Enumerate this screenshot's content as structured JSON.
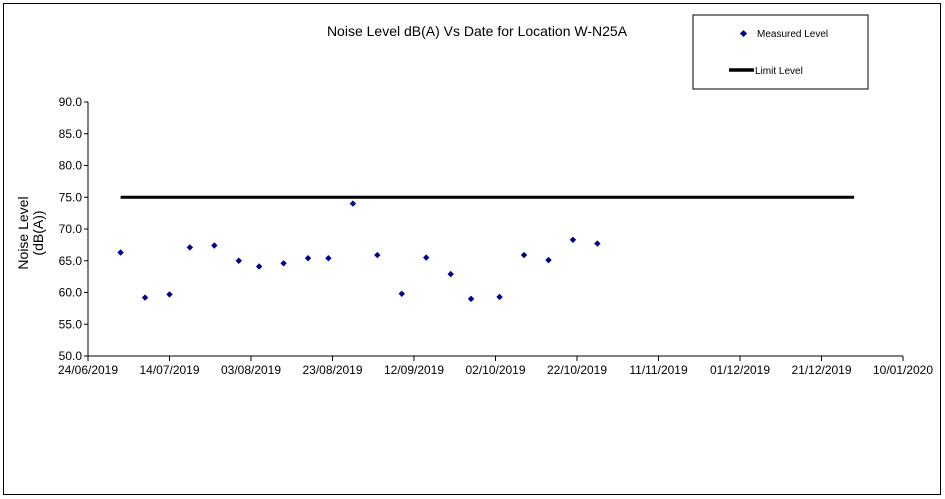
{
  "chart_data": {
    "type": "scatter",
    "title": "Noise Level dB(A) Vs Date for Location W-N25A",
    "ylabel_lines": [
      "Noise Level",
      "(dB(A))"
    ],
    "xlabel": "",
    "ylim": [
      50,
      90
    ],
    "y_ticks": [
      "50.0",
      "55.0",
      "60.0",
      "65.0",
      "70.0",
      "75.0",
      "80.0",
      "85.0",
      "90.0"
    ],
    "xlim": [
      "2019-06-24",
      "2020-01-10"
    ],
    "x_ticks": [
      "24/06/2019",
      "14/07/2019",
      "03/08/2019",
      "23/08/2019",
      "12/09/2019",
      "02/10/2019",
      "22/10/2019",
      "11/11/2019",
      "01/12/2019",
      "21/12/2019",
      "10/01/2020"
    ],
    "grid": false,
    "legend_position": "top-right",
    "series": [
      {
        "name": "Measured Level",
        "color": "#00008B",
        "marker": "diamond",
        "points": [
          {
            "x": "2019-07-02",
            "y": 66.3
          },
          {
            "x": "2019-07-08",
            "y": 59.2
          },
          {
            "x": "2019-07-14",
            "y": 59.7
          },
          {
            "x": "2019-07-19",
            "y": 67.1
          },
          {
            "x": "2019-07-25",
            "y": 67.4
          },
          {
            "x": "2019-07-31",
            "y": 65.0
          },
          {
            "x": "2019-08-05",
            "y": 64.1
          },
          {
            "x": "2019-08-11",
            "y": 64.6
          },
          {
            "x": "2019-08-17",
            "y": 65.4
          },
          {
            "x": "2019-08-22",
            "y": 65.4
          },
          {
            "x": "2019-08-28",
            "y": 74.0
          },
          {
            "x": "2019-09-03",
            "y": 65.9
          },
          {
            "x": "2019-09-09",
            "y": 59.8
          },
          {
            "x": "2019-09-15",
            "y": 65.5
          },
          {
            "x": "2019-09-21",
            "y": 62.9
          },
          {
            "x": "2019-09-26",
            "y": 59.0
          },
          {
            "x": "2019-10-03",
            "y": 59.3
          },
          {
            "x": "2019-10-09",
            "y": 65.9
          },
          {
            "x": "2019-10-15",
            "y": 65.1
          },
          {
            "x": "2019-10-21",
            "y": 68.3
          },
          {
            "x": "2019-10-27",
            "y": 67.7
          }
        ]
      },
      {
        "name": "Limit Level",
        "color": "#000000",
        "type": "line",
        "points": [
          {
            "x": "2019-07-02",
            "y": 75.0
          },
          {
            "x": "2019-12-29",
            "y": 75.0
          }
        ]
      }
    ]
  }
}
